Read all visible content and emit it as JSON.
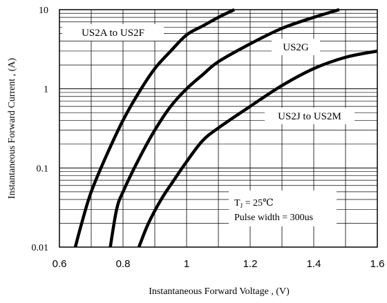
{
  "chart_data": {
    "type": "line",
    "title": "",
    "xlabel": "Instantaneous Forward Voltage , (V)",
    "ylabel": "Instantaneous Forward Current , (A)",
    "xlim": [
      0.6,
      1.6
    ],
    "ylim": [
      0.01,
      10
    ],
    "yscale": "log",
    "grid": true,
    "x_ticks": [
      0.6,
      0.8,
      1,
      1.2,
      1.4,
      1.6
    ],
    "x_tick_labels": [
      "0.6",
      "0.8",
      "1",
      "1.2",
      "1.4",
      "1.6"
    ],
    "y_ticks": [
      0.01,
      0.1,
      1,
      10
    ],
    "y_tick_labels": [
      "0.01",
      "0.1",
      "1",
      "10"
    ],
    "series": [
      {
        "name": "US2A to US2F",
        "points": [
          [
            0.65,
            0.01
          ],
          [
            0.67,
            0.02
          ],
          [
            0.7,
            0.05
          ],
          [
            0.75,
            0.15
          ],
          [
            0.8,
            0.4
          ],
          [
            0.85,
            0.9
          ],
          [
            0.9,
            1.8
          ],
          [
            0.95,
            3.0
          ],
          [
            1.0,
            4.8
          ],
          [
            1.05,
            6.2
          ],
          [
            1.1,
            8.0
          ],
          [
            1.15,
            10.0
          ]
        ]
      },
      {
        "name": "US2G",
        "points": [
          [
            0.76,
            0.01
          ],
          [
            0.78,
            0.03
          ],
          [
            0.8,
            0.05
          ],
          [
            0.85,
            0.13
          ],
          [
            0.9,
            0.3
          ],
          [
            0.95,
            0.6
          ],
          [
            1.0,
            1.0
          ],
          [
            1.05,
            1.5
          ],
          [
            1.1,
            2.2
          ],
          [
            1.2,
            3.7
          ],
          [
            1.3,
            5.8
          ],
          [
            1.4,
            8.0
          ],
          [
            1.48,
            10.0
          ]
        ]
      },
      {
        "name": "US2J to US2M",
        "points": [
          [
            0.85,
            0.01
          ],
          [
            0.88,
            0.02
          ],
          [
            0.92,
            0.04
          ],
          [
            0.96,
            0.07
          ],
          [
            1.0,
            0.12
          ],
          [
            1.05,
            0.22
          ],
          [
            1.1,
            0.32
          ],
          [
            1.2,
            0.6
          ],
          [
            1.3,
            1.1
          ],
          [
            1.4,
            1.8
          ],
          [
            1.5,
            2.5
          ],
          [
            1.6,
            3.0
          ]
        ]
      }
    ],
    "annotation": {
      "tj_prefix": "T",
      "tj_sub": "J",
      "tj_rest": " = 25℃",
      "pulse": "Pulse width = 300us"
    }
  }
}
